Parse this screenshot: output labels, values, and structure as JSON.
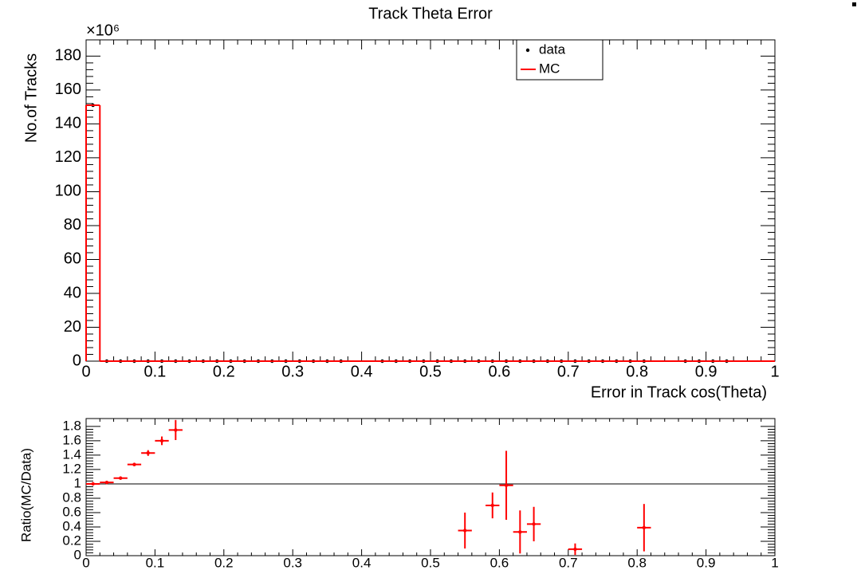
{
  "chart_data": [
    {
      "type": "histogram",
      "title": "Track Theta Error",
      "xlabel": "Error in Track cos(Theta)",
      "ylabel": "No.of Tracks",
      "y_multiplier": "×10⁶",
      "bins": [
        0,
        0.02,
        0.04,
        0.06,
        0.08,
        0.1,
        0.12,
        0.14,
        0.16,
        0.18,
        0.2,
        0.22,
        0.24,
        0.26,
        0.28,
        0.3,
        0.32,
        0.34,
        0.36,
        0.38,
        0.4,
        0.42,
        0.44,
        0.46,
        0.48,
        0.5,
        0.52,
        0.54,
        0.56,
        0.58,
        0.6,
        0.62,
        0.64,
        0.66,
        0.68,
        0.7,
        0.72,
        0.74,
        0.76,
        0.78,
        0.8,
        0.82,
        0.84,
        0.86,
        0.88,
        0.9,
        0.92,
        0.94,
        0.96,
        0.98,
        1
      ],
      "series": [
        {
          "name": "data",
          "color": "#000000",
          "style": "points",
          "values": [
            151,
            0,
            0,
            0,
            0,
            0,
            0,
            0,
            0,
            0,
            0,
            0,
            0,
            0,
            0,
            0,
            0,
            0,
            0,
            null,
            null,
            0,
            0,
            0,
            0,
            0,
            0,
            0,
            0,
            0,
            0,
            0,
            0,
            0,
            0,
            0,
            0,
            0,
            0,
            0,
            0,
            null,
            null,
            0,
            0,
            0,
            0,
            null,
            null,
            null
          ]
        },
        {
          "name": "MC",
          "color": "#ff0000",
          "style": "step",
          "values": [
            151,
            0,
            0,
            0,
            0,
            0,
            0,
            0,
            0,
            0,
            0,
            0,
            0,
            0,
            0,
            0,
            0,
            0,
            0,
            0,
            0,
            0,
            0,
            0,
            0,
            0,
            0,
            0,
            0,
            0,
            0,
            0,
            0,
            0,
            0,
            0,
            0,
            0,
            0,
            0,
            0,
            0,
            0,
            0,
            0,
            0,
            0,
            0,
            0,
            0
          ]
        }
      ],
      "xlim": [
        0,
        1
      ],
      "xticks": [
        0,
        0.1,
        0.2,
        0.3,
        0.4,
        0.5,
        0.6,
        0.7,
        0.8,
        0.9,
        1
      ],
      "ylim": [
        0,
        189.6
      ],
      "yticks": [
        0,
        20,
        40,
        60,
        80,
        100,
        120,
        140,
        160,
        180
      ],
      "legend": "top-right"
    },
    {
      "type": "errorbar",
      "ylabel": "Ratio(MC/Data)",
      "color": "#ff0000",
      "x": [
        0.01,
        0.03,
        0.05,
        0.07,
        0.09,
        0.11,
        0.13,
        0.55,
        0.59,
        0.61,
        0.63,
        0.65,
        0.71,
        0.81
      ],
      "values": [
        1.0,
        1.02,
        1.08,
        1.27,
        1.43,
        1.6,
        1.75,
        0.35,
        0.7,
        0.98,
        0.33,
        0.44,
        0.09,
        0.39
      ],
      "errors": [
        0.01,
        0.01,
        0.02,
        0.02,
        0.04,
        0.06,
        0.14,
        0.25,
        0.18,
        0.48,
        0.3,
        0.24,
        0.08,
        0.33
      ],
      "xerr": 0.01,
      "hline": 1,
      "xlim": [
        0,
        1
      ],
      "xticks": [
        0,
        0.1,
        0.2,
        0.3,
        0.4,
        0.5,
        0.6,
        0.7,
        0.8,
        0.9,
        1
      ],
      "ylim": [
        0,
        1.91
      ],
      "yticks": [
        0,
        0.2,
        0.4,
        0.6,
        0.8,
        1,
        1.2,
        1.4,
        1.6,
        1.8
      ]
    }
  ]
}
